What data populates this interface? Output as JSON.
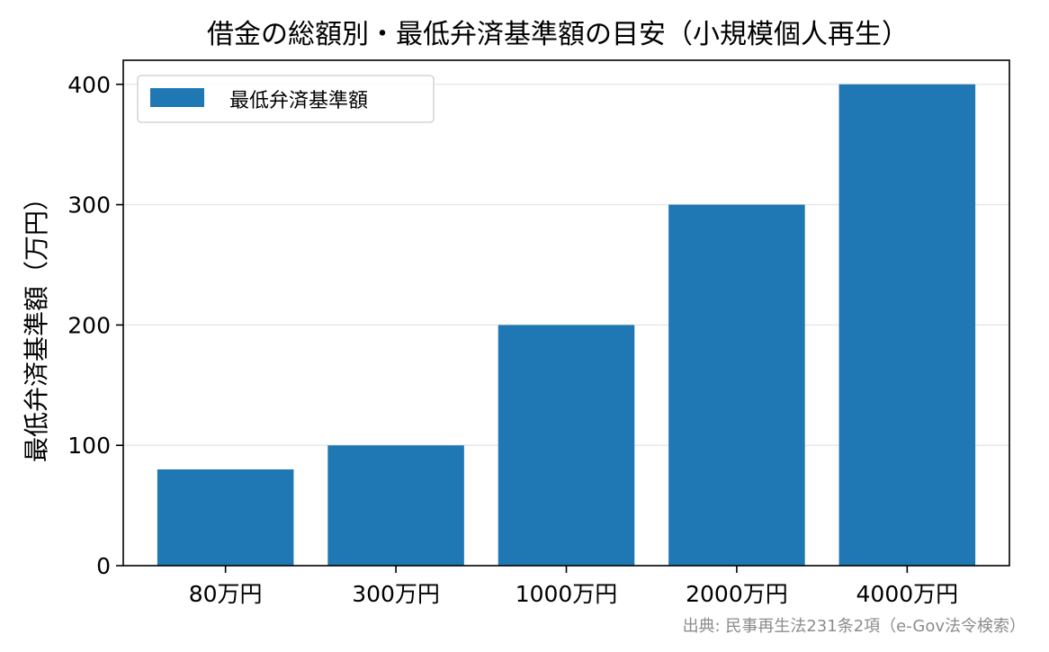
{
  "chart_data": {
    "type": "bar",
    "title": "借金の総額別・最低弁済基準額の目安（小規模個人再生）",
    "ylabel": "最低弁済基準額（万円）",
    "xlabel": "",
    "categories": [
      "80万円",
      "300万円",
      "1000万円",
      "2000万円",
      "4000万円"
    ],
    "series": [
      {
        "name": "最低弁済基準額",
        "values": [
          80,
          100,
          200,
          300,
          400
        ],
        "color": "#1f77b4"
      }
    ],
    "ylim": [
      0,
      420
    ],
    "yticks": [
      0,
      100,
      200,
      300,
      400
    ],
    "grid": true,
    "legend_position": "top-left",
    "source": "出典: 民事再生法231条2項（e-Gov法令検索）"
  }
}
